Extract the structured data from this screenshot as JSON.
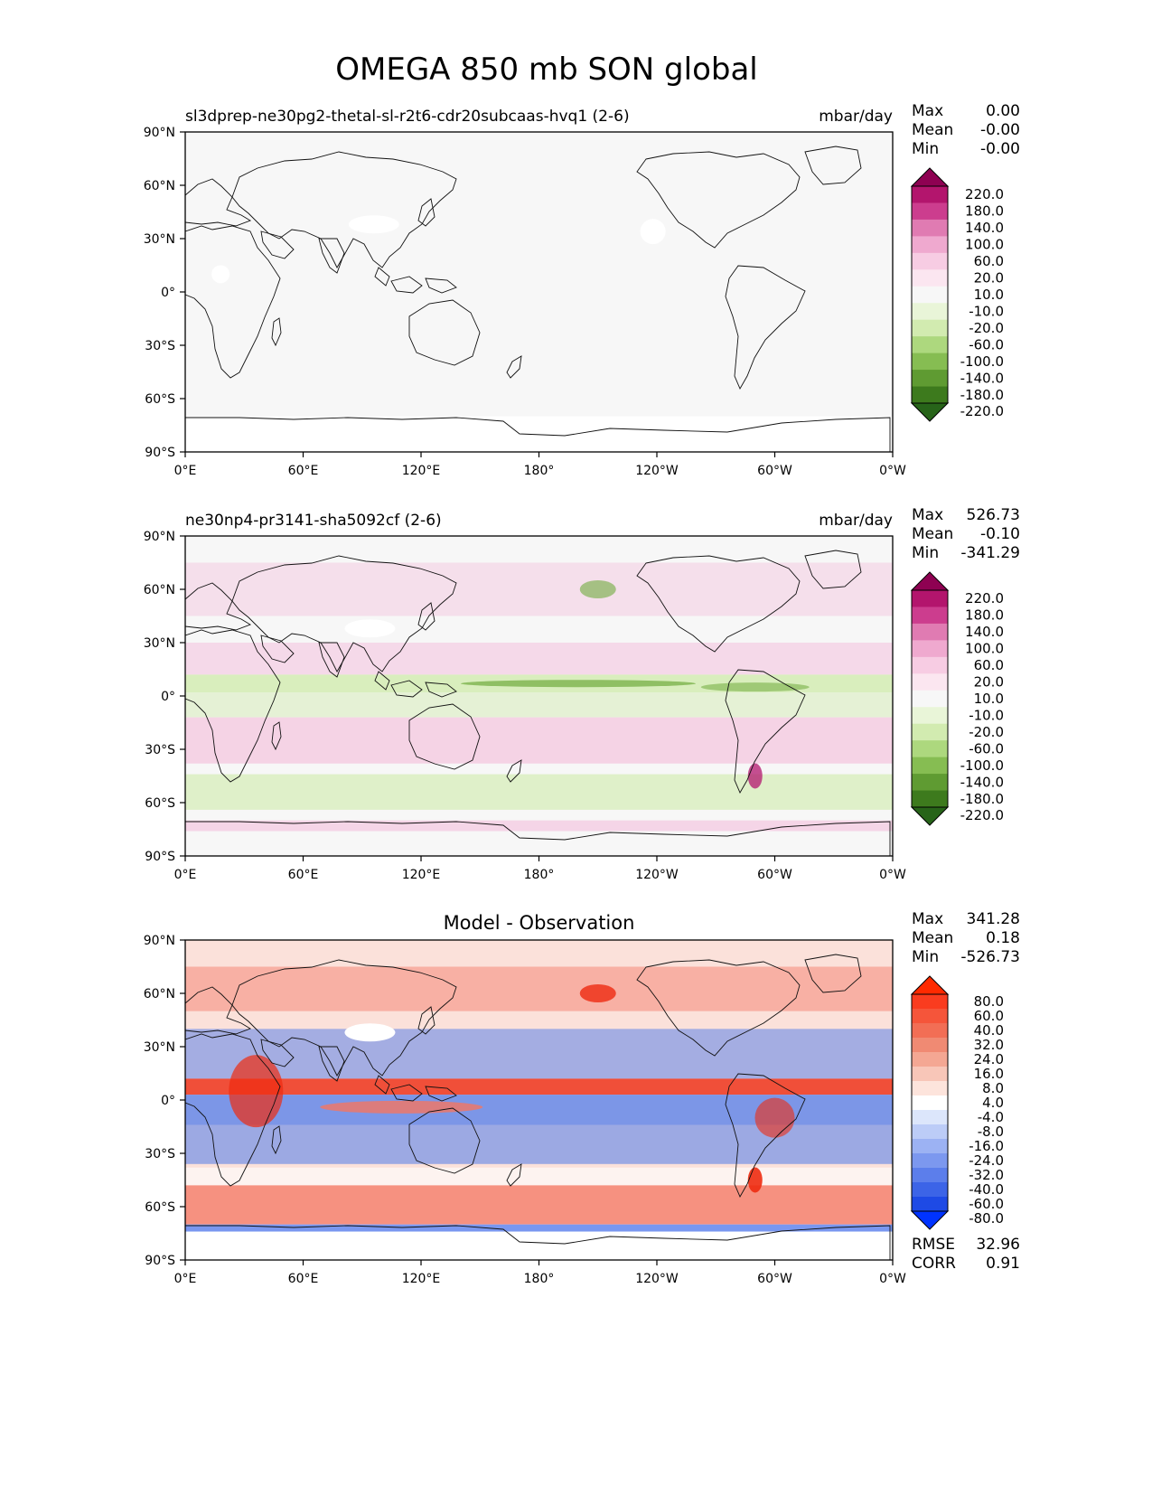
{
  "figure_title": "OMEGA 850 mb SON global",
  "panels": [
    {
      "id": "test",
      "left_title": "sl3dprep-ne30pg2-thetal-sl-r2t6-cdr20subcaas-hvq1 (2-6)",
      "center_title": "",
      "units": "mbar/day",
      "stats": {
        "max_label": "Max",
        "max": "0.00",
        "mean_label": "Mean",
        "mean": "-0.00",
        "min_label": "Min",
        "min": "-0.00"
      },
      "colorbar": {
        "labels": [
          "220.0",
          "180.0",
          "140.0",
          "100.0",
          "60.0",
          "20.0",
          "10.0",
          "-10.0",
          "-20.0",
          "-60.0",
          "-100.0",
          "-140.0",
          "-180.0",
          "-220.0"
        ],
        "colors": [
          "#8e0152",
          "#b3156d",
          "#cc3d8e",
          "#e07bb2",
          "#efa9cf",
          "#f7cce3",
          "#fbe6f0",
          "#f7f7f7",
          "#e9f5d8",
          "#d2ebb0",
          "#add87e",
          "#86bd52",
          "#5f9b32",
          "#3d7a1d",
          "#276419"
        ]
      }
    },
    {
      "id": "reference",
      "left_title": "ne30np4-pr3141-sha5092cf (2-6)",
      "center_title": "",
      "units": "mbar/day",
      "stats": {
        "max_label": "Max",
        "max": "526.73",
        "mean_label": "Mean",
        "mean": "-0.10",
        "min_label": "Min",
        "min": "-341.29"
      },
      "colorbar": {
        "labels": [
          "220.0",
          "180.0",
          "140.0",
          "100.0",
          "60.0",
          "20.0",
          "10.0",
          "-10.0",
          "-20.0",
          "-60.0",
          "-100.0",
          "-140.0",
          "-180.0",
          "-220.0"
        ],
        "colors": [
          "#8e0152",
          "#b3156d",
          "#cc3d8e",
          "#e07bb2",
          "#efa9cf",
          "#f7cce3",
          "#fbe6f0",
          "#f7f7f7",
          "#e9f5d8",
          "#d2ebb0",
          "#add87e",
          "#86bd52",
          "#5f9b32",
          "#3d7a1d",
          "#276419"
        ]
      }
    },
    {
      "id": "difference",
      "left_title": "",
      "center_title": "Model - Observation",
      "units": "",
      "stats": {
        "max_label": "Max",
        "max": "341.28",
        "mean_label": "Mean",
        "mean": "0.18",
        "min_label": "Min",
        "min": "-526.73"
      },
      "colorbar": {
        "labels": [
          "80.0",
          "60.0",
          "40.0",
          "32.0",
          "24.0",
          "16.0",
          "8.0",
          "4.0",
          "-4.0",
          "-8.0",
          "-16.0",
          "-24.0",
          "-32.0",
          "-40.0",
          "-60.0",
          "-80.0"
        ],
        "colors": [
          "#ff2a00",
          "#fa3c1f",
          "#f5553a",
          "#f26e55",
          "#f08a73",
          "#f4a793",
          "#f8c6b8",
          "#fde4dc",
          "#ffffff",
          "#dce6fb",
          "#bcccf7",
          "#9cb2f3",
          "#7c98ef",
          "#5c7eeb",
          "#3c64e7",
          "#1e4ae5",
          "#0033ff"
        ]
      },
      "rmse_label": "RMSE",
      "rmse": "32.96",
      "corr_label": "CORR",
      "corr": "0.91"
    }
  ],
  "axes": {
    "x_ticks": [
      "0°E",
      "60°E",
      "120°E",
      "180°",
      "120°W",
      "60°W",
      "0°W"
    ],
    "y_ticks": [
      "90°N",
      "60°N",
      "30°N",
      "0°",
      "30°S",
      "60°S",
      "90°S"
    ]
  },
  "colors": {
    "test_fill": "#f7f7f7",
    "test_patch": "#ffffff",
    "ref_pos": "#f4cce2",
    "ref_neg": "#d7edb9",
    "ref_strong_neg": "#6fab3d",
    "ref_strong_pos": "#b3156d",
    "diff_pos": "#f47561",
    "diff_neg": "#5d83ea",
    "diff_strong_pos": "#ee2b10",
    "diff_strong_neg": "#1f52e6",
    "coast": "#111111"
  }
}
